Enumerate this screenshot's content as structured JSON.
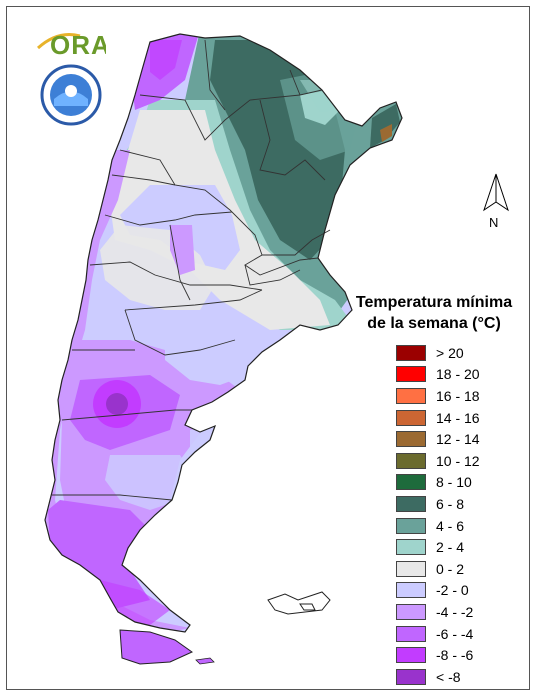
{
  "logo": {
    "text": "ORA",
    "icon": "sun-arc-logo"
  },
  "seal": {
    "icon": "smn-argentina-seal"
  },
  "north_arrow": {
    "label": "N",
    "icon": "north-arrow-icon"
  },
  "legend": {
    "title_line1": "Temperatura mínima",
    "title_line2": "de la semana (°C)",
    "items": [
      {
        "label": "> 20",
        "color": "#9b0000"
      },
      {
        "label": "18 - 20",
        "color": "#ff0000"
      },
      {
        "label": "16 - 18",
        "color": "#ff7043"
      },
      {
        "label": "14 - 16",
        "color": "#cc6633"
      },
      {
        "label": "12 - 14",
        "color": "#9b6a32"
      },
      {
        "label": "10 - 12",
        "color": "#6b6b2e"
      },
      {
        "label": "8 - 10",
        "color": "#1e6b3c"
      },
      {
        "label": "6 - 8",
        "color": "#3d6b62"
      },
      {
        "label": "4 - 6",
        "color": "#6aa29a"
      },
      {
        "label": "2 - 4",
        "color": "#9fd4cc"
      },
      {
        "label": "0 - 2",
        "color": "#e8e8e8"
      },
      {
        "label": "-2 - 0",
        "color": "#ccccff"
      },
      {
        "label": "-4 - -2",
        "color": "#cc99ff"
      },
      {
        "label": "-6 - -4",
        "color": "#c066ff"
      },
      {
        "label": "-8 - -6",
        "color": "#c23cff"
      },
      {
        "label": "< -8",
        "color": "#9933cc"
      }
    ]
  },
  "map": {
    "region": "Argentina",
    "palette": {
      "border": "#333333",
      "outline": "#222222"
    }
  }
}
